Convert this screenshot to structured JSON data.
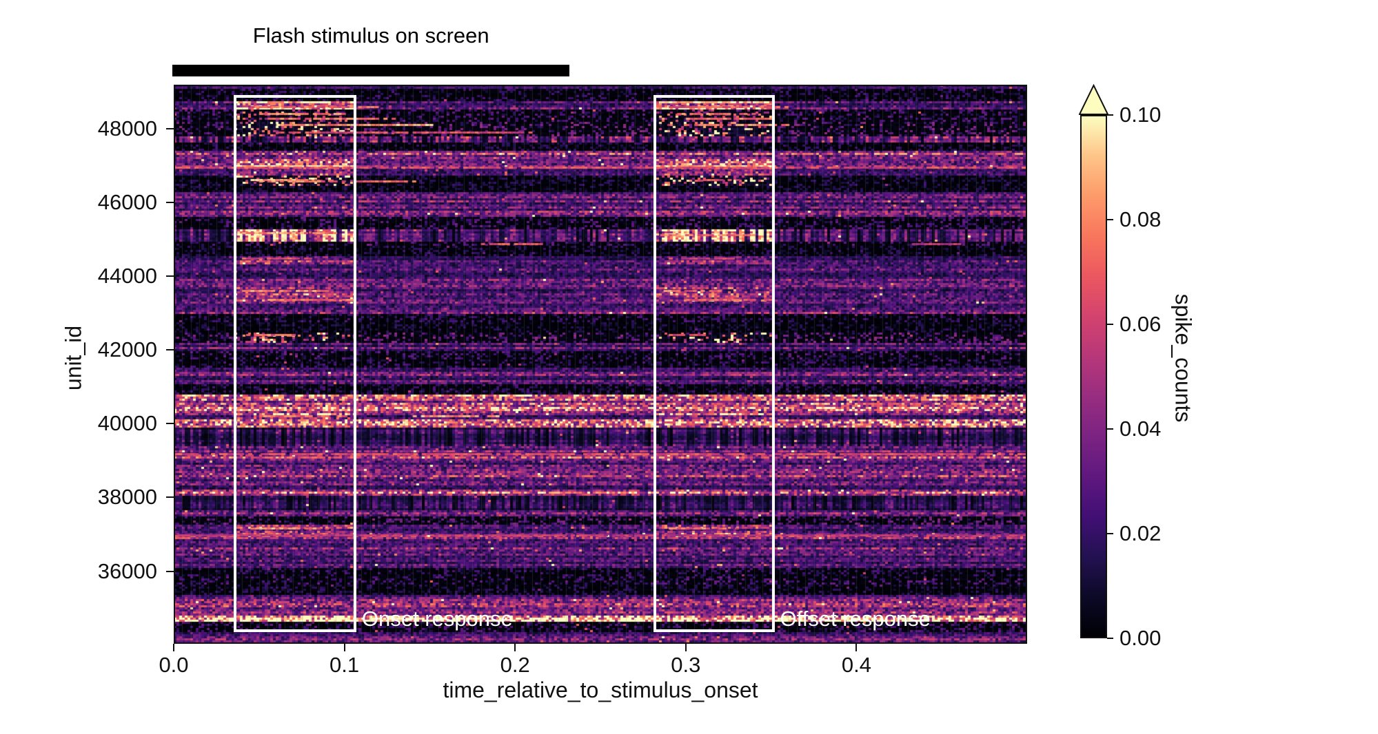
{
  "figure": {
    "stimulus_annotation": {
      "label": "Flash stimulus on screen"
    }
  },
  "chart_data": {
    "type": "heatmap",
    "title": "",
    "xlabel": "time_relative_to_stimulus_onset",
    "ylabel": "unit_id",
    "x_range": [
      0.0,
      0.5
    ],
    "y_range": [
      34030,
      49200
    ],
    "x_ticks": [
      {
        "v": 0.0,
        "label": "0.0"
      },
      {
        "v": 0.1,
        "label": "0.1"
      },
      {
        "v": 0.2,
        "label": "0.2"
      },
      {
        "v": 0.3,
        "label": "0.3"
      },
      {
        "v": 0.4,
        "label": "0.4"
      }
    ],
    "y_ticks": [
      {
        "v": 36000,
        "label": "36000"
      },
      {
        "v": 38000,
        "label": "38000"
      },
      {
        "v": 40000,
        "label": "40000"
      },
      {
        "v": 42000,
        "label": "42000"
      },
      {
        "v": 44000,
        "label": "44000"
      },
      {
        "v": 46000,
        "label": "46000"
      },
      {
        "v": 48000,
        "label": "48000"
      }
    ],
    "grid_bin_width": 0.005,
    "grid_color": "#828282",
    "colormap": {
      "name": "magma",
      "stops": [
        "#000004",
        "#0c0927",
        "#231151",
        "#410f75",
        "#5f187f",
        "#7b2382",
        "#982d80",
        "#b73779",
        "#d3436e",
        "#eb5760",
        "#f8765c",
        "#fd9a6a",
        "#fec488",
        "#fcfdbf"
      ]
    },
    "colorbar": {
      "label": "spike_counts",
      "vmin": 0.0,
      "vmax": 0.1,
      "extend": "max",
      "ticks": [
        {
          "v": 0.0,
          "label": "0.00"
        },
        {
          "v": 0.02,
          "label": "0.02"
        },
        {
          "v": 0.04,
          "label": "0.04"
        },
        {
          "v": 0.06,
          "label": "0.06"
        },
        {
          "v": 0.08,
          "label": "0.08"
        },
        {
          "v": 0.1,
          "label": "0.10"
        }
      ]
    },
    "stimulus_bar": {
      "t0": 0.0,
      "t1": 0.232,
      "label": "Flash stimulus on screen"
    },
    "boxes": [
      {
        "name": "onset",
        "label": "Onset response",
        "t0": 0.035,
        "t1": 0.107,
        "f0": 0.018,
        "f1": 0.979
      },
      {
        "name": "offset",
        "label": "Offset response",
        "t0": 0.281,
        "t1": 0.352,
        "f0": 0.018,
        "f1": 0.979
      }
    ],
    "seed": 1337,
    "bands": [
      [
        0.0,
        0.009,
        0.25,
        "smooth",
        0
      ],
      [
        0.009,
        0.028,
        0.12,
        "sparse",
        0
      ],
      [
        0.028,
        0.043,
        0.3,
        "smooth",
        2.8
      ],
      [
        0.043,
        0.065,
        0.15,
        "sparse",
        2.2
      ],
      [
        0.065,
        0.092,
        0.2,
        "sparse",
        2.5
      ],
      [
        0.092,
        0.105,
        0.32,
        "bars",
        0
      ],
      [
        0.105,
        0.119,
        0.1,
        "sparse",
        0
      ],
      [
        0.119,
        0.132,
        0.5,
        "smooth",
        0
      ],
      [
        0.132,
        0.148,
        0.45,
        "smooth",
        1.8
      ],
      [
        0.148,
        0.164,
        0.28,
        "smooth",
        1.8
      ],
      [
        0.164,
        0.179,
        0.1,
        "sparse",
        5.0
      ],
      [
        0.179,
        0.193,
        0.08,
        "sparse",
        0
      ],
      [
        0.193,
        0.222,
        0.32,
        "smooth",
        0
      ],
      [
        0.222,
        0.238,
        0.35,
        "smooth",
        0
      ],
      [
        0.238,
        0.259,
        0.15,
        "sparse",
        0
      ],
      [
        0.259,
        0.28,
        0.22,
        "bars",
        3.2
      ],
      [
        0.28,
        0.289,
        0.15,
        "sparse",
        0
      ],
      [
        0.289,
        0.305,
        0.1,
        "sparse",
        0
      ],
      [
        0.305,
        0.32,
        0.3,
        "smooth",
        1.6
      ],
      [
        0.32,
        0.347,
        0.24,
        "smooth",
        0
      ],
      [
        0.347,
        0.361,
        0.36,
        "smooth",
        0
      ],
      [
        0.361,
        0.379,
        0.3,
        "smooth",
        1.7
      ],
      [
        0.379,
        0.388,
        0.45,
        "smooth",
        1.6
      ],
      [
        0.388,
        0.403,
        0.36,
        "smooth",
        0
      ],
      [
        0.403,
        0.411,
        0.46,
        "smooth",
        0
      ],
      [
        0.411,
        0.425,
        0.12,
        "sparse",
        0
      ],
      [
        0.425,
        0.441,
        0.08,
        "sparse",
        0
      ],
      [
        0.441,
        0.461,
        0.2,
        "sparse",
        2.0
      ],
      [
        0.461,
        0.477,
        0.3,
        "smooth",
        0
      ],
      [
        0.477,
        0.491,
        0.15,
        "sparse",
        0
      ],
      [
        0.491,
        0.504,
        0.12,
        "sparse",
        0
      ],
      [
        0.504,
        0.521,
        0.36,
        "smooth",
        0
      ],
      [
        0.521,
        0.536,
        0.3,
        "smooth",
        0
      ],
      [
        0.536,
        0.552,
        0.12,
        "sparse",
        0
      ],
      [
        0.552,
        0.585,
        0.6,
        "smooth",
        0
      ],
      [
        0.585,
        0.597,
        0.32,
        "smooth",
        1.8
      ],
      [
        0.597,
        0.614,
        0.55,
        "smooth",
        0
      ],
      [
        0.614,
        0.644,
        0.2,
        "bars",
        0
      ],
      [
        0.644,
        0.664,
        0.35,
        "smooth",
        0
      ],
      [
        0.664,
        0.67,
        0.5,
        "smooth",
        0
      ],
      [
        0.67,
        0.686,
        0.3,
        "smooth",
        0
      ],
      [
        0.686,
        0.704,
        0.45,
        "smooth",
        0
      ],
      [
        0.704,
        0.723,
        0.3,
        "smooth",
        0
      ],
      [
        0.723,
        0.734,
        0.6,
        "smooth",
        0
      ],
      [
        0.734,
        0.761,
        0.18,
        "bars",
        0
      ],
      [
        0.761,
        0.771,
        0.45,
        "smooth",
        0
      ],
      [
        0.771,
        0.787,
        0.18,
        "sparse",
        0
      ],
      [
        0.787,
        0.803,
        0.3,
        "smooth",
        1.7
      ],
      [
        0.803,
        0.811,
        0.5,
        "smooth",
        0
      ],
      [
        0.811,
        0.827,
        0.25,
        "smooth",
        0
      ],
      [
        0.827,
        0.837,
        0.5,
        "smooth",
        0
      ],
      [
        0.837,
        0.864,
        0.28,
        "smooth",
        0
      ],
      [
        0.864,
        0.88,
        0.12,
        "sparse",
        0
      ],
      [
        0.88,
        0.893,
        0.15,
        "sparse",
        0
      ],
      [
        0.893,
        0.91,
        0.1,
        "sparse",
        0
      ],
      [
        0.91,
        0.926,
        0.35,
        "smooth",
        0
      ],
      [
        0.926,
        0.938,
        0.45,
        "smooth",
        0
      ],
      [
        0.938,
        0.953,
        0.6,
        "smooth",
        0
      ],
      [
        0.953,
        0.96,
        0.95,
        "smooth",
        0
      ],
      [
        0.96,
        0.978,
        0.15,
        "sparse",
        0
      ],
      [
        0.978,
        1.0,
        0.35,
        "smooth",
        0
      ]
    ],
    "streaks": [
      [
        0.031,
        0.038,
        0.09,
        1.0
      ],
      [
        0.031,
        0.285,
        0.345,
        1.0
      ],
      [
        0.04,
        0.045,
        0.12,
        0.75
      ],
      [
        0.04,
        0.29,
        0.36,
        0.75
      ],
      [
        0.052,
        0.05,
        0.1,
        0.85
      ],
      [
        0.052,
        0.295,
        0.34,
        0.85
      ],
      [
        0.06,
        0.055,
        0.13,
        0.8
      ],
      [
        0.06,
        0.3,
        0.35,
        0.8
      ],
      [
        0.072,
        0.06,
        0.15,
        0.9
      ],
      [
        0.072,
        0.305,
        0.36,
        0.85
      ],
      [
        0.085,
        0.06,
        0.21,
        0.7
      ],
      [
        0.145,
        0.04,
        0.105,
        0.95
      ],
      [
        0.145,
        0.285,
        0.352,
        0.95
      ],
      [
        0.148,
        0.0,
        0.5,
        0.7
      ],
      [
        0.17,
        0.045,
        0.08,
        0.9
      ],
      [
        0.17,
        0.31,
        0.33,
        0.7
      ],
      [
        0.173,
        0.05,
        0.14,
        0.8
      ],
      [
        0.265,
        0.04,
        0.095,
        0.85
      ],
      [
        0.268,
        0.285,
        0.34,
        0.8
      ],
      [
        0.285,
        0.18,
        0.215,
        0.7
      ],
      [
        0.285,
        0.43,
        0.46,
        0.6
      ],
      [
        0.31,
        0.04,
        0.08,
        0.7
      ],
      [
        0.31,
        0.29,
        0.33,
        0.65
      ],
      [
        0.368,
        0.04,
        0.09,
        0.85
      ],
      [
        0.368,
        0.287,
        0.32,
        0.8
      ],
      [
        0.384,
        0.055,
        0.105,
        0.8
      ],
      [
        0.384,
        0.3,
        0.35,
        0.75
      ],
      [
        0.447,
        0.04,
        0.07,
        0.8
      ],
      [
        0.447,
        0.29,
        0.31,
        0.7
      ],
      [
        0.592,
        0.14,
        0.19,
        0.9
      ],
      [
        0.592,
        0.05,
        0.1,
        0.8
      ],
      [
        0.66,
        0.0,
        0.5,
        0.7
      ],
      [
        0.793,
        0.045,
        0.09,
        0.85
      ],
      [
        0.793,
        0.29,
        0.33,
        0.8
      ],
      [
        0.806,
        0.0,
        0.5,
        0.6
      ]
    ]
  }
}
